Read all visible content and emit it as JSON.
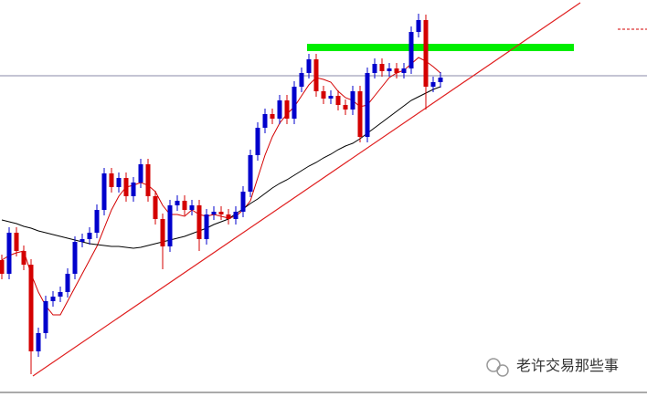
{
  "chart_data": {
    "type": "candlestick",
    "ylim": [
      0,
      435
    ],
    "colors": {
      "up": "#0000cc",
      "down": "#d40000"
    },
    "open": [
      150,
      135,
      180,
      160,
      145,
      50,
      70,
      105,
      110,
      115,
      135,
      170,
      173,
      180,
      205,
      245,
      230,
      240,
      220,
      235,
      255,
      220,
      195,
      165,
      210,
      215,
      205,
      210,
      173,
      200,
      203,
      200,
      195,
      203,
      225,
      265,
      295,
      310,
      305,
      325,
      305,
      340,
      355,
      370,
      335,
      327,
      330,
      320,
      315,
      335,
      285,
      355,
      365,
      357,
      360,
      355,
      360,
      400,
      413,
      340,
      345
    ],
    "high": [
      156,
      186,
      186,
      166,
      151,
      76,
      111,
      116,
      121,
      141,
      176,
      179,
      186,
      211,
      251,
      251,
      246,
      246,
      241,
      261,
      261,
      226,
      201,
      216,
      221,
      221,
      216,
      216,
      206,
      209,
      209,
      206,
      209,
      231,
      271,
      301,
      316,
      316,
      331,
      331,
      346,
      361,
      376,
      376,
      341,
      336,
      336,
      326,
      341,
      341,
      361,
      371,
      371,
      366,
      366,
      366,
      406,
      420,
      419,
      351,
      356
    ],
    "low": [
      129,
      129,
      154,
      139,
      25,
      44,
      64,
      99,
      104,
      109,
      129,
      164,
      167,
      174,
      199,
      224,
      224,
      214,
      214,
      229,
      214,
      189,
      140,
      159,
      204,
      199,
      199,
      160,
      167,
      194,
      194,
      189,
      189,
      197,
      219,
      259,
      289,
      299,
      299,
      299,
      299,
      334,
      349,
      329,
      321,
      321,
      314,
      309,
      309,
      279,
      279,
      349,
      351,
      351,
      349,
      349,
      354,
      394,
      315,
      334,
      339
    ],
    "close": [
      135,
      180,
      160,
      145,
      50,
      70,
      105,
      110,
      115,
      135,
      170,
      173,
      180,
      205,
      245,
      230,
      240,
      220,
      235,
      255,
      220,
      195,
      165,
      210,
      215,
      205,
      210,
      173,
      200,
      203,
      200,
      195,
      203,
      225,
      265,
      295,
      310,
      305,
      325,
      305,
      340,
      355,
      370,
      335,
      327,
      330,
      320,
      315,
      335,
      285,
      355,
      365,
      357,
      360,
      355,
      360,
      400,
      413,
      340,
      345,
      350
    ],
    "series": [
      {
        "color": "#d40000",
        "values": [
          150,
          155,
          158,
          160,
          135,
          115,
          100,
          90,
          90,
          105,
          120,
          135,
          150,
          165,
          185,
          205,
          220,
          230,
          232,
          235,
          232,
          225,
          210,
          200,
          200,
          198,
          205,
          200,
          198,
          200,
          198,
          196,
          198,
          205,
          215,
          240,
          265,
          285,
          300,
          310,
          318,
          330,
          342,
          350,
          348,
          345,
          335,
          328,
          325,
          318,
          320,
          330,
          340,
          350,
          355,
          358,
          365,
          372,
          368,
          362,
          355
        ]
      },
      {
        "color": "#000000",
        "values": [
          194,
          192,
          190,
          187,
          185,
          182,
          180,
          178,
          176,
          174,
          172,
          170,
          168,
          167,
          166,
          165,
          165,
          164,
          163,
          164,
          166,
          168,
          170,
          172,
          174,
          176,
          179,
          182,
          185,
          189,
          192,
          195,
          201,
          206,
          212,
          217,
          223,
          229,
          234,
          238,
          243,
          248,
          253,
          257,
          262,
          266,
          271,
          275,
          278,
          283,
          289,
          295,
          301,
          307,
          313,
          319,
          325,
          329,
          333,
          337,
          340
        ]
      }
    ],
    "watermark": "老许交易那些事"
  }
}
